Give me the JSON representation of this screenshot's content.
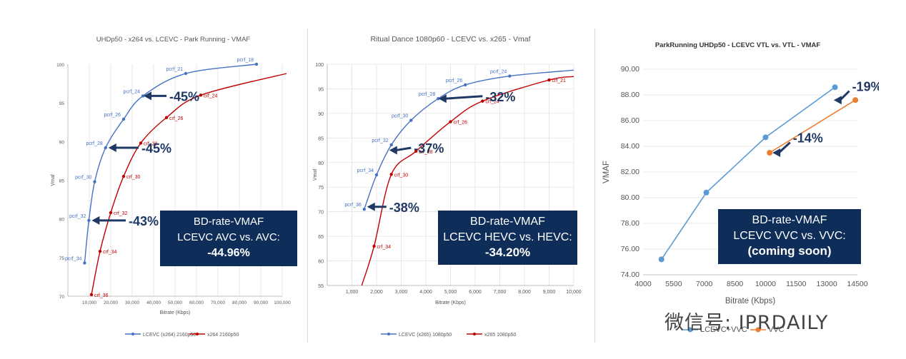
{
  "chart_data": [
    {
      "type": "line",
      "title": "UHDp50 - x264 vs. LCEVC - Park Running  - VMAF",
      "xlabel": "Bitrate (Kbps)",
      "ylabel": "Vmaf",
      "xlim": [
        0,
        100000
      ],
      "ylim": [
        70,
        100
      ],
      "xticks": [
        10000,
        20000,
        30000,
        40000,
        50000,
        60000,
        70000,
        80000,
        90000,
        100000
      ],
      "xtick_labels": [
        "10,000",
        "20,000",
        "30,000",
        "40,000",
        "50,000",
        "60,000",
        "70,000",
        "80,000",
        "90,000",
        "100,000"
      ],
      "yticks": [
        70,
        75,
        80,
        85,
        90,
        95,
        100
      ],
      "ytick_labels": [
        "70",
        "75",
        "80",
        "85",
        "90",
        "95",
        "100"
      ],
      "legend_position": "bottom",
      "series": [
        {
          "name": "LCEVC (x264) 2160p50",
          "color": "#4472c4",
          "points": [
            [
              7800,
              74.3
            ],
            [
              9800,
              79.8
            ],
            [
              12500,
              84.8
            ],
            [
              17600,
              89.2
            ],
            [
              26000,
              92.9
            ],
            [
              35000,
              95.9
            ],
            [
              55000,
              98.8
            ],
            [
              88000,
              100
            ]
          ],
          "labels": [
            "pcrf_34",
            "pcrf_32",
            "pcrf_30",
            "pcrf_28",
            "pcrf_26",
            "pcrf_24",
            "pcrf_21",
            "pcrf_18"
          ],
          "curve_end": [
            88000,
            100
          ]
        },
        {
          "name": "x264 2160p50",
          "color": "#c00000",
          "points": [
            [
              11000,
              70.2
            ],
            [
              15000,
              75.8
            ],
            [
              20000,
              80.8
            ],
            [
              26000,
              85.5
            ],
            [
              34000,
              89.8
            ],
            [
              46000,
              93.1
            ],
            [
              62000,
              96
            ]
          ],
          "labels": [
            "crf_36",
            "crf_34",
            "crf_32",
            "crf_30",
            "crf_28",
            "crf_26",
            "crf_24"
          ],
          "curve_end": [
            102000,
            98.8
          ]
        }
      ],
      "annotations": [
        {
          "text": "-45%",
          "at": [
            46000,
            95.9
          ],
          "arrow_to": [
            34000,
            95.9
          ]
        },
        {
          "text": "-45%",
          "at": [
            33000,
            89.2
          ],
          "arrow_to": [
            17600,
            89.2
          ]
        },
        {
          "text": "-43%",
          "at": [
            27000,
            79.8
          ],
          "arrow_to": [
            9800,
            79.8
          ]
        }
      ],
      "box": {
        "line1": "BD-rate-VMAF",
        "line2": "LCEVC AVC vs. AVC:",
        "line3": "-44.96%"
      }
    },
    {
      "type": "line",
      "title": "Ritual Dance 1080p60 - LCEVC vs. x265 - Vmaf",
      "xlabel": "Bitrate (Kbps)",
      "ylabel": "Vmaf",
      "xlim": [
        0,
        10000
      ],
      "ylim": [
        55,
        100
      ],
      "xticks": [
        1000,
        2000,
        3000,
        4000,
        5000,
        6000,
        7000,
        8000,
        9000,
        10000
      ],
      "xtick_labels": [
        "1,000",
        "2,000",
        "3,000",
        "4,000",
        "5,000",
        "6,000",
        "7,000",
        "8,000",
        "9,000",
        "10,000"
      ],
      "yticks": [
        55,
        60,
        65,
        70,
        75,
        80,
        85,
        90,
        95,
        100
      ],
      "ytick_labels": [
        "55",
        "60",
        "65",
        "70",
        "75",
        "80",
        "85",
        "90",
        "95",
        "100"
      ],
      "legend_position": "bottom",
      "series": [
        {
          "name": "LCEVC (x265) 1080p50",
          "color": "#4472c4",
          "points": [
            [
              1500,
              70.5
            ],
            [
              2000,
              77.5
            ],
            [
              2600,
              83.6
            ],
            [
              3400,
              88.6
            ],
            [
              4500,
              93
            ],
            [
              5600,
              95.8
            ],
            [
              7400,
              97.6
            ]
          ],
          "labels": [
            "pcrf_36",
            "pcrf_34",
            "pcrf_32",
            "pcrf_30",
            "pcrf_28",
            "pcrf_26",
            "pcrf_24"
          ],
          "curve_end": [
            10000,
            98.8
          ]
        },
        {
          "name": "x265 1080p50",
          "color": "#c00000",
          "points": [
            [
              1900,
              63
            ],
            [
              2600,
              77.6
            ],
            [
              3600,
              82.3
            ],
            [
              5000,
              88.3
            ],
            [
              6300,
              92.5
            ],
            [
              9000,
              96.8
            ]
          ],
          "labels": [
            "crf_34",
            "crf_30",
            "crf_28",
            "crf_26",
            "crf_24",
            "crf_21"
          ],
          "curve_start": [
            1400,
            55
          ],
          "curve_end": [
            10000,
            97.5
          ]
        }
      ],
      "annotations": [
        {
          "text": "-32%",
          "at": [
            6300,
            93.5
          ],
          "arrow_to": [
            4400,
            93
          ]
        },
        {
          "text": "-37%",
          "at": [
            3400,
            83
          ],
          "arrow_to": [
            2400,
            82.5
          ]
        },
        {
          "text": "-38%",
          "at": [
            2400,
            71
          ],
          "arrow_to": [
            1500,
            71
          ]
        }
      ],
      "box": {
        "line1": "BD-rate-VMAF",
        "line2": "LCEVC HEVC vs. HEVC:",
        "line3": "-34.20%"
      }
    },
    {
      "type": "line",
      "title": "ParkRunning UHDp50 - LCEVC VTL vs. VTL - VMAF",
      "xlabel": "Bitrate (Kbps)",
      "ylabel": "VMAF",
      "xlim": [
        4000,
        14500
      ],
      "ylim": [
        74,
        90
      ],
      "xticks": [
        4000,
        5500,
        7000,
        8500,
        10000,
        11500,
        13000,
        14500
      ],
      "xtick_labels": [
        "4000",
        "5500",
        "7000",
        "8500",
        "10000",
        "11500",
        "13000",
        "14500"
      ],
      "yticks": [
        74,
        76,
        78,
        80,
        82,
        84,
        86,
        88,
        90
      ],
      "ytick_labels": [
        "74.00",
        "76.00",
        "78.00",
        "80.00",
        "82.00",
        "84.00",
        "86.00",
        "88.00",
        "90.00"
      ],
      "legend_position": "bottom",
      "series": [
        {
          "name": "LCEVC+VVC",
          "color": "#5b9bd5",
          "points": [
            [
              4900,
              75.2
            ],
            [
              7100,
              80.4
            ],
            [
              10000,
              84.7
            ],
            [
              13400,
              88.6
            ]
          ]
        },
        {
          "name": "VVC",
          "color": "#ed7d31",
          "points": [
            [
              10200,
              83.5
            ],
            [
              14400,
              87.6
            ]
          ]
        }
      ],
      "annotations": [
        {
          "text": "-19%",
          "at": [
            14100,
            88.3
          ],
          "arrow_to": [
            13200,
            87.6
          ]
        },
        {
          "text": "-14%",
          "at": [
            11200,
            84.3
          ],
          "arrow_to": [
            10200,
            83.5
          ]
        }
      ],
      "box": {
        "line1": "BD-rate-VMAF",
        "line2": "LCEVC VVC vs. VVC:",
        "line3": "(coming soon)"
      }
    }
  ],
  "watermark": {
    "text": "微信号: IPRDAILY"
  },
  "colors": {
    "navy": "#0e2d59",
    "arrow": "#1f3864",
    "grid": "#d9d9d9"
  }
}
